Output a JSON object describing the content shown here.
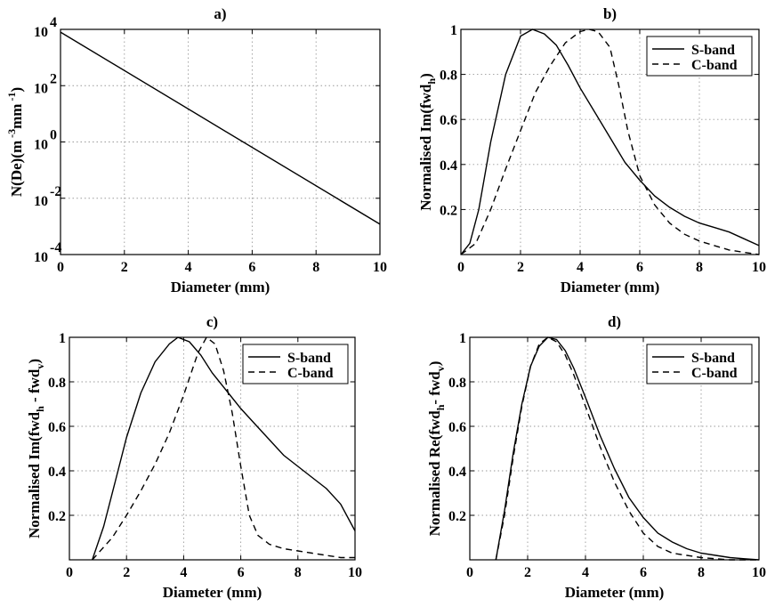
{
  "figure": {
    "styles": {
      "line_color": "#000000",
      "grid_color": "#9a9a9a",
      "background": "#ffffff"
    }
  },
  "chart_data": [
    {
      "id": "a",
      "type": "line",
      "title": "a)",
      "xlabel": "Diameter (mm)",
      "ylabel": "N(De)(m⁻³mm⁻¹)",
      "yscale": "log",
      "xlim": [
        0,
        10
      ],
      "ylim": [
        0.0001,
        10000
      ],
      "xticks": [
        0,
        2,
        4,
        6,
        8,
        10
      ],
      "yticks": [
        {
          "value": 0.0001,
          "base": "10",
          "exp": "-4"
        },
        {
          "value": 0.01,
          "base": "10",
          "exp": "-2"
        },
        {
          "value": 1,
          "base": "10",
          "exp": "0"
        },
        {
          "value": 100,
          "base": "10",
          "exp": "2"
        },
        {
          "value": 10000,
          "base": "10",
          "exp": "4"
        }
      ],
      "grid": true,
      "legend": null,
      "series": [
        {
          "style": "solid",
          "x": [
            0,
            10
          ],
          "y": [
            8000,
            0.0012
          ]
        }
      ]
    },
    {
      "id": "b",
      "type": "line",
      "title": "b)",
      "xlabel": "Diameter (mm)",
      "ylabel": "Normalised Im(fwd_h)",
      "xlim": [
        0,
        10
      ],
      "ylim": [
        0,
        1
      ],
      "xticks": [
        0,
        2,
        4,
        6,
        8,
        10
      ],
      "yticks": [
        0.2,
        0.4,
        0.6,
        0.8,
        1
      ],
      "ytick_labels": [
        "0.2",
        "0.4",
        "0.6",
        "0.8",
        "1"
      ],
      "grid": true,
      "legend": "top-right",
      "series": [
        {
          "name": "S-band",
          "style": "solid",
          "x": [
            0,
            0.3,
            0.6,
            1.0,
            1.5,
            2.0,
            2.4,
            2.8,
            3.2,
            3.6,
            4.0,
            4.5,
            5.0,
            5.5,
            6.0,
            6.5,
            7.0,
            7.5,
            8.0,
            8.5,
            9.0,
            9.5,
            10
          ],
          "y": [
            0,
            0.05,
            0.2,
            0.5,
            0.8,
            0.97,
            1.0,
            0.98,
            0.93,
            0.84,
            0.74,
            0.63,
            0.52,
            0.41,
            0.33,
            0.26,
            0.21,
            0.17,
            0.14,
            0.12,
            0.1,
            0.07,
            0.04
          ]
        },
        {
          "name": "C-band",
          "style": "dashed",
          "x": [
            0,
            0.5,
            1.0,
            1.5,
            2.0,
            2.5,
            3.0,
            3.5,
            4.0,
            4.3,
            4.6,
            5.0,
            5.3,
            5.6,
            6.0,
            6.5,
            7.0,
            7.5,
            8.0,
            8.5,
            9.0,
            9.5,
            10
          ],
          "y": [
            0,
            0.05,
            0.2,
            0.38,
            0.55,
            0.72,
            0.84,
            0.94,
            0.99,
            1.0,
            0.99,
            0.92,
            0.75,
            0.55,
            0.35,
            0.22,
            0.14,
            0.09,
            0.06,
            0.04,
            0.02,
            0.01,
            0
          ]
        }
      ]
    },
    {
      "id": "c",
      "type": "line",
      "title": "c)",
      "xlabel": "Diameter (mm)",
      "ylabel": "Normalised Im(fwd_h - fwd_v)",
      "xlim": [
        0,
        10
      ],
      "ylim": [
        0,
        1
      ],
      "xticks": [
        0,
        2,
        4,
        6,
        8,
        10
      ],
      "yticks": [
        0.2,
        0.4,
        0.6,
        0.8,
        1
      ],
      "ytick_labels": [
        "0.2",
        "0.4",
        "0.6",
        "0.8",
        "1"
      ],
      "grid": true,
      "legend": "top-right",
      "series": [
        {
          "name": "S-band",
          "style": "solid",
          "x": [
            0.8,
            1.2,
            1.6,
            2.0,
            2.5,
            3.0,
            3.5,
            3.8,
            4.2,
            4.6,
            5.0,
            5.5,
            6.0,
            6.5,
            7.0,
            7.5,
            8.0,
            8.5,
            9.0,
            9.5,
            10
          ],
          "y": [
            0,
            0.15,
            0.35,
            0.55,
            0.75,
            0.89,
            0.97,
            1.0,
            0.98,
            0.92,
            0.84,
            0.76,
            0.68,
            0.61,
            0.54,
            0.47,
            0.42,
            0.37,
            0.32,
            0.25,
            0.13
          ]
        },
        {
          "name": "C-band",
          "style": "dashed",
          "x": [
            0.8,
            1.5,
            2.0,
            2.5,
            3.0,
            3.5,
            4.0,
            4.5,
            4.8,
            5.1,
            5.4,
            5.7,
            6.0,
            6.3,
            6.6,
            7.0,
            7.5,
            8.0,
            8.5,
            9.0,
            9.5,
            10
          ],
          "y": [
            0,
            0.1,
            0.2,
            0.31,
            0.43,
            0.57,
            0.74,
            0.93,
            1.0,
            0.97,
            0.85,
            0.66,
            0.42,
            0.2,
            0.11,
            0.07,
            0.05,
            0.04,
            0.03,
            0.02,
            0.01,
            0.01
          ]
        }
      ]
    },
    {
      "id": "d",
      "type": "line",
      "title": "d)",
      "xlabel": "Diameter (mm)",
      "ylabel": "Normalised Re(fwd_h - fwd_v)",
      "xlim": [
        0,
        10
      ],
      "ylim": [
        0,
        1
      ],
      "xticks": [
        0,
        2,
        4,
        6,
        8,
        10
      ],
      "yticks": [
        0.2,
        0.4,
        0.6,
        0.8,
        1
      ],
      "ytick_labels": [
        "0.2",
        "0.4",
        "0.6",
        "0.8",
        "1"
      ],
      "grid": true,
      "legend": "top-right",
      "series": [
        {
          "name": "S-band",
          "style": "solid",
          "x": [
            0.9,
            1.2,
            1.5,
            1.8,
            2.1,
            2.4,
            2.7,
            3.0,
            3.3,
            3.6,
            4.0,
            4.5,
            5.0,
            5.5,
            6.0,
            6.5,
            7.0,
            7.5,
            8.0,
            8.5,
            9.0,
            9.5,
            10
          ],
          "y": [
            0,
            0.22,
            0.48,
            0.7,
            0.87,
            0.96,
            1.0,
            0.99,
            0.94,
            0.86,
            0.73,
            0.56,
            0.41,
            0.28,
            0.19,
            0.12,
            0.08,
            0.05,
            0.03,
            0.02,
            0.01,
            0.005,
            0
          ]
        },
        {
          "name": "C-band",
          "style": "dashed",
          "x": [
            0.9,
            1.2,
            1.5,
            1.8,
            2.1,
            2.4,
            2.7,
            3.0,
            3.3,
            3.6,
            4.0,
            4.5,
            5.0,
            5.5,
            6.0,
            6.5,
            7.0,
            7.5,
            8.0,
            8.5,
            9.0,
            9.5,
            10
          ],
          "y": [
            0,
            0.2,
            0.46,
            0.69,
            0.87,
            0.97,
            1.0,
            0.98,
            0.92,
            0.83,
            0.69,
            0.51,
            0.35,
            0.22,
            0.12,
            0.06,
            0.03,
            0.02,
            0.01,
            0.005,
            0,
            0,
            0
          ]
        }
      ]
    }
  ]
}
